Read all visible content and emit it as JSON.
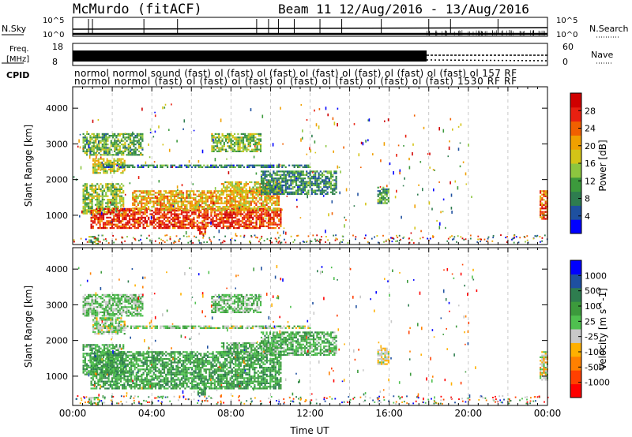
{
  "header": {
    "radar": "McMurdo (fitACF)",
    "beam_date": "Beam 11 12/Aug/2016 - 13/Aug/2016"
  },
  "strips": {
    "nsky": {
      "label": "N.Sky",
      "ticks": [
        "10^5",
        "10^0"
      ],
      "right_label": "N.Search",
      "right_ticks": [
        "10^5",
        "10^0"
      ]
    },
    "freq": {
      "label_top": "Freq.",
      "label_bottom": "[MHz]",
      "ticks": [
        "18",
        "8"
      ],
      "right_label": "Nave",
      "right_ticks": [
        "60",
        "0"
      ]
    },
    "cpid": {
      "label": "CPID",
      "row1": "normol  normol  sound  (fast)  ol  (fast) ol  (fast) ol  (fast) ol  (fast) ol  (fast) ol  (fast) ol  157  RF",
      "row2": "normol  normol  (fast) ol  (fast) ol  (fast)  ol  (fast) ol  (fast) ol  (fast) ol  (fast)  1530  RF  RF"
    }
  },
  "colors": {
    "power_scale": [
      "#0000ff",
      "#1e50a0",
      "#2e7d4f",
      "#3c9a3c",
      "#8cc63f",
      "#d4c417",
      "#f0a000",
      "#f06000",
      "#e82010",
      "#d00000"
    ],
    "velocity_scale": [
      "#ff0000",
      "#ff4000",
      "#ff8000",
      "#ffb000",
      "#c8c8c8",
      "#4fc04f",
      "#3c9a3c",
      "#2e7d4f",
      "#1e50a0",
      "#0000ff"
    ]
  },
  "chart_data": [
    {
      "type": "heatmap",
      "name": "power",
      "ylabel": "Slant Range [km]",
      "colorbar_label": "Power [dB]",
      "colorbar_ticks": [
        "4",
        "8",
        "12",
        "16",
        "20",
        "24",
        "28"
      ],
      "colorbar_range": [
        0,
        32
      ],
      "xlim_hours": [
        0,
        24
      ],
      "ylim": [
        180,
        4600
      ],
      "yticks": [
        1000,
        2000,
        3000,
        4000
      ],
      "grid_vertical_hours": [
        2,
        4,
        6,
        8,
        10,
        12,
        14,
        16,
        18,
        20,
        22
      ],
      "regions": [
        {
          "t0": 0.5,
          "t1": 2.6,
          "r0": 1050,
          "r1": 1900,
          "value": 14
        },
        {
          "t0": 0.9,
          "t1": 10.5,
          "r0": 650,
          "r1": 1200,
          "value": 27
        },
        {
          "t0": 3.0,
          "t1": 10.4,
          "r0": 1150,
          "r1": 1700,
          "value": 20
        },
        {
          "t0": 7.5,
          "t1": 10.5,
          "r0": 1650,
          "r1": 1950,
          "value": 18
        },
        {
          "t0": 6.3,
          "t1": 6.7,
          "r0": 500,
          "r1": 700,
          "value": 26
        },
        {
          "t0": 1.0,
          "t1": 2.6,
          "r0": 2200,
          "r1": 2600,
          "value": 16
        },
        {
          "t0": 1.5,
          "t1": 12.0,
          "r0": 2330,
          "r1": 2420,
          "value": 8
        },
        {
          "t0": 9.5,
          "t1": 13.3,
          "r0": 1600,
          "r1": 2250,
          "value": 9
        },
        {
          "t0": 15.4,
          "t1": 16.0,
          "r0": 1350,
          "r1": 1800,
          "value": 11
        },
        {
          "t0": 23.6,
          "t1": 24.0,
          "r0": 900,
          "r1": 1700,
          "value": 24
        },
        {
          "t0": 0.8,
          "t1": 1.3,
          "r0": 180,
          "r1": 420,
          "value": 12
        },
        {
          "t0": 0.5,
          "t1": 3.5,
          "r0": 2700,
          "r1": 3300,
          "value": 12
        },
        {
          "t0": 7.0,
          "t1": 9.5,
          "r0": 2800,
          "r1": 3300,
          "value": 14
        }
      ]
    },
    {
      "type": "heatmap",
      "name": "velocity",
      "xlabel": "Time UT",
      "ylabel": "Slant Range [km]",
      "colorbar_label": "Velocity [m s^-1]",
      "colorbar_ticks": [
        "-1000",
        "-500",
        "-100",
        "-25",
        "25",
        "100",
        "500",
        "1000"
      ],
      "colorbar_range": [
        -1250,
        1250
      ],
      "xlim_hours": [
        0,
        24
      ],
      "ylim": [
        180,
        4600
      ],
      "yticks": [
        1000,
        2000,
        3000,
        4000
      ],
      "xticks": [
        "00:00",
        "04:00",
        "08:00",
        "12:00",
        "16:00",
        "20:00",
        "00:00"
      ],
      "xtick_hours": [
        0,
        4,
        8,
        12,
        16,
        20,
        24
      ],
      "grid_vertical_hours": [
        2,
        4,
        6,
        8,
        10,
        12,
        14,
        16,
        18,
        20,
        22
      ],
      "regions": [
        {
          "t0": 0.5,
          "t1": 2.6,
          "r0": 1050,
          "r1": 1900,
          "value": 300
        },
        {
          "t0": 0.9,
          "t1": 10.5,
          "r0": 650,
          "r1": 1700,
          "value": 350
        },
        {
          "t0": 7.5,
          "t1": 10.5,
          "r0": 1650,
          "r1": 1950,
          "value": 250
        },
        {
          "t0": 6.3,
          "t1": 6.7,
          "r0": 500,
          "r1": 700,
          "value": 400
        },
        {
          "t0": 1.0,
          "t1": 2.6,
          "r0": 2200,
          "r1": 2650,
          "value": 0
        },
        {
          "t0": 1.5,
          "t1": 12.0,
          "r0": 2330,
          "r1": 2420,
          "value": 10
        },
        {
          "t0": 9.5,
          "t1": 13.3,
          "r0": 1600,
          "r1": 2250,
          "value": 250
        },
        {
          "t0": 15.4,
          "t1": 16.0,
          "r0": 1350,
          "r1": 1800,
          "value": -150
        },
        {
          "t0": 23.6,
          "t1": 24.0,
          "r0": 900,
          "r1": 1700,
          "value": -200
        },
        {
          "t0": 0.8,
          "t1": 1.3,
          "r0": 180,
          "r1": 420,
          "value": 80
        },
        {
          "t0": 0.5,
          "t1": 3.5,
          "r0": 2700,
          "r1": 3300,
          "value": 120
        },
        {
          "t0": 7.0,
          "t1": 9.5,
          "r0": 2800,
          "r1": 3300,
          "value": 150
        }
      ]
    }
  ]
}
